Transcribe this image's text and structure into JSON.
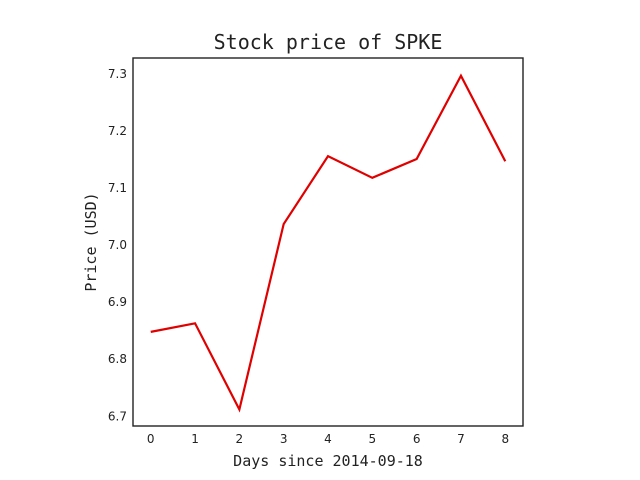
{
  "chart_data": {
    "type": "line",
    "title": "Stock price of SPKE",
    "xlabel": "Days since 2014-09-18",
    "ylabel": "Price (USD)",
    "x": [
      0,
      1,
      2,
      3,
      4,
      5,
      6,
      7,
      8
    ],
    "series": [
      {
        "values": [
          6.848,
          6.863,
          6.712,
          7.037,
          7.156,
          7.118,
          7.151,
          7.297,
          7.147
        ],
        "color": "#e00000"
      }
    ],
    "xlim": [
      -0.4,
      8.4
    ],
    "ylim": [
      6.683,
      7.328
    ],
    "xticks": [
      "0",
      "1",
      "2",
      "3",
      "4",
      "5",
      "6",
      "7",
      "8"
    ],
    "yticks": [
      "6.7",
      "6.8",
      "6.9",
      "7.0",
      "7.1",
      "7.2",
      "7.3"
    ],
    "grid": false
  }
}
